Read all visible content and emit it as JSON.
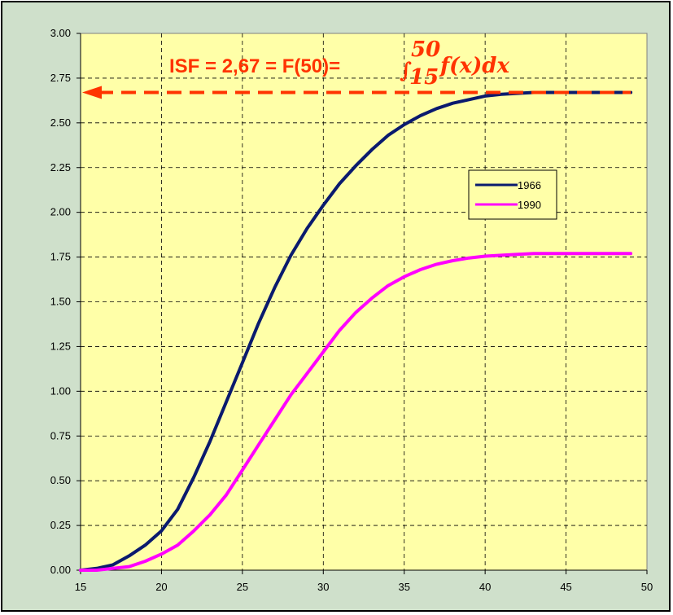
{
  "chart_data": {
    "type": "line",
    "title": "",
    "xlabel": "",
    "ylabel": "",
    "xlim": [
      15,
      50
    ],
    "ylim": [
      0,
      3
    ],
    "x_ticks": [
      "15",
      "20",
      "25",
      "30",
      "35",
      "40",
      "45",
      "50"
    ],
    "y_ticks": [
      "0.00",
      "0.25",
      "0.50",
      "0.75",
      "1.00",
      "1.25",
      "1.50",
      "1.75",
      "2.00",
      "2.25",
      "2.50",
      "2.75",
      "3.00"
    ],
    "grid": true,
    "legend_position": "right",
    "series": [
      {
        "name": "1966",
        "color": "#0a1a6e",
        "x": [
          15,
          16,
          17,
          18,
          19,
          20,
          21,
          22,
          23,
          24,
          25,
          26,
          27,
          28,
          29,
          30,
          31,
          32,
          33,
          34,
          35,
          36,
          37,
          38,
          39,
          40,
          41,
          42,
          43,
          44,
          45,
          46,
          47,
          48,
          49
        ],
        "y": [
          0.0,
          0.01,
          0.03,
          0.08,
          0.14,
          0.22,
          0.34,
          0.52,
          0.72,
          0.94,
          1.16,
          1.38,
          1.58,
          1.76,
          1.91,
          2.04,
          2.16,
          2.26,
          2.35,
          2.43,
          2.49,
          2.54,
          2.58,
          2.61,
          2.63,
          2.65,
          2.66,
          2.665,
          2.67,
          2.67,
          2.67,
          2.67,
          2.67,
          2.67,
          2.67
        ]
      },
      {
        "name": "1990",
        "color": "#ff00ff",
        "x": [
          15,
          16,
          17,
          18,
          19,
          20,
          21,
          22,
          23,
          24,
          25,
          26,
          27,
          28,
          29,
          30,
          31,
          32,
          33,
          34,
          35,
          36,
          37,
          38,
          39,
          40,
          41,
          42,
          43,
          44,
          45,
          46,
          47,
          48,
          49
        ],
        "y": [
          0.0,
          0.0,
          0.01,
          0.02,
          0.05,
          0.09,
          0.14,
          0.22,
          0.31,
          0.42,
          0.56,
          0.7,
          0.84,
          0.98,
          1.1,
          1.22,
          1.34,
          1.44,
          1.52,
          1.59,
          1.64,
          1.68,
          1.71,
          1.73,
          1.745,
          1.755,
          1.76,
          1.765,
          1.77,
          1.77,
          1.77,
          1.77,
          1.77,
          1.77,
          1.77
        ]
      }
    ],
    "annotations": {
      "reference_value": 2.67,
      "reference_color": "#ff3300",
      "text_prefix": "ISF = 2,67 = F(50)= ",
      "integral_sign": "∫",
      "integral_upper": "50",
      "integral_lower": "15",
      "integrand": "f(x)dx",
      "text_color": "#ff3300"
    }
  }
}
